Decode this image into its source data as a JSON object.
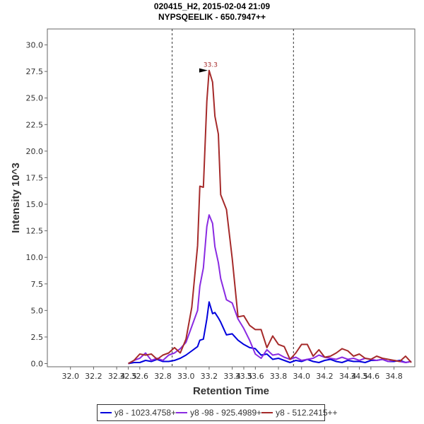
{
  "chart_data": {
    "type": "line",
    "title": "020415_H2, 2015-02-04 21:09",
    "subtitle": "NYPSQEELIK - 650.7947++",
    "xlabel": "Retention Time",
    "ylabel": "Intensity 10^3",
    "xlim": [
      31.8,
      34.98
    ],
    "ylim": [
      -0.3,
      31.5
    ],
    "xticks": [
      "32.0",
      "32.2",
      "32.4",
      "32.5",
      "32.6",
      "32.8",
      "33.0",
      "33.2",
      "33.4",
      "33.5",
      "33.6",
      "33.8",
      "34.0",
      "34.2",
      "34.4",
      "34.5",
      "34.6",
      "34.8"
    ],
    "xtick_values": [
      32.0,
      32.2,
      32.4,
      32.5,
      32.6,
      32.8,
      33.0,
      33.2,
      33.4,
      33.5,
      33.6,
      33.8,
      34.0,
      34.2,
      34.4,
      34.5,
      34.6,
      34.8
    ],
    "yticks": [
      "0.0",
      "2.5",
      "5.0",
      "7.5",
      "10.0",
      "12.5",
      "15.0",
      "17.5",
      "20.0",
      "22.5",
      "25.0",
      "27.5",
      "30.0"
    ],
    "ytick_values": [
      0,
      2.5,
      5,
      7.5,
      10,
      12.5,
      15,
      17.5,
      20,
      22.5,
      25,
      27.5,
      30
    ],
    "vlines": [
      32.88,
      33.93
    ],
    "peak_label": "33.3",
    "peak": {
      "x": 33.2,
      "y": 27.6
    },
    "grid": false,
    "legend_position": "bottom",
    "series": [
      {
        "name": "y8 - 1023.4758+",
        "color": "#0000dd",
        "x": [
          32.5,
          32.55,
          32.6,
          32.65,
          32.7,
          32.75,
          32.8,
          32.85,
          32.9,
          32.95,
          33.0,
          33.05,
          33.1,
          33.12,
          33.15,
          33.18,
          33.2,
          33.23,
          33.25,
          33.28,
          33.3,
          33.35,
          33.4,
          33.45,
          33.5,
          33.55,
          33.6,
          33.65,
          33.7,
          33.75,
          33.8,
          33.85,
          33.9,
          33.95,
          34.0,
          34.05,
          34.1,
          34.15,
          34.2,
          34.25,
          34.3,
          34.35,
          34.4,
          34.45,
          34.5,
          34.55,
          34.6,
          34.65,
          34.7,
          34.75,
          34.8,
          34.85,
          34.9,
          34.95
        ],
        "y": [
          0.0,
          0.1,
          0.1,
          0.3,
          0.2,
          0.4,
          0.2,
          0.2,
          0.3,
          0.5,
          0.8,
          1.2,
          1.6,
          2.2,
          2.3,
          4.2,
          5.8,
          4.7,
          4.8,
          4.3,
          3.9,
          2.7,
          2.8,
          2.2,
          1.8,
          1.5,
          1.4,
          0.8,
          0.9,
          0.4,
          0.5,
          0.3,
          0.1,
          0.3,
          0.2,
          0.4,
          0.2,
          0.1,
          0.3,
          0.4,
          0.2,
          0.1,
          0.3,
          0.2,
          0.2,
          0.1,
          0.3,
          0.3,
          0.4,
          0.2,
          0.2,
          0.3,
          0.1,
          0.2
        ]
      },
      {
        "name": "y8 -98 - 925.4989+",
        "color": "#8a2be2",
        "x": [
          32.5,
          32.55,
          32.6,
          32.65,
          32.7,
          32.75,
          32.8,
          32.85,
          32.9,
          32.95,
          33.0,
          33.05,
          33.1,
          33.12,
          33.15,
          33.18,
          33.2,
          33.23,
          33.25,
          33.28,
          33.3,
          33.35,
          33.4,
          33.45,
          33.5,
          33.55,
          33.6,
          33.65,
          33.7,
          33.75,
          33.8,
          33.85,
          33.9,
          33.95,
          34.0,
          34.05,
          34.1,
          34.15,
          34.2,
          34.25,
          34.3,
          34.35,
          34.4,
          34.45,
          34.5,
          34.55,
          34.6,
          34.65,
          34.7,
          34.75,
          34.8,
          34.85,
          34.9,
          34.95
        ],
        "y": [
          0.0,
          0.3,
          0.5,
          1.0,
          0.3,
          0.5,
          0.3,
          0.8,
          1.0,
          1.4,
          2.0,
          3.5,
          5.0,
          7.3,
          9.0,
          12.9,
          14.0,
          13.2,
          11.0,
          9.5,
          8.0,
          6.0,
          5.7,
          4.2,
          3.3,
          2.2,
          0.9,
          0.5,
          1.3,
          0.8,
          0.9,
          0.6,
          0.4,
          0.6,
          0.3,
          0.4,
          0.5,
          0.8,
          0.6,
          0.5,
          0.4,
          0.6,
          0.4,
          0.5,
          0.3,
          0.5,
          0.4,
          0.3,
          0.4,
          0.2,
          0.3,
          0.2,
          0.1,
          0.2
        ]
      },
      {
        "name": "y8 - 512.2415++",
        "color": "#a52a2a",
        "x": [
          32.5,
          32.55,
          32.6,
          32.65,
          32.7,
          32.75,
          32.8,
          32.85,
          32.9,
          32.95,
          33.0,
          33.05,
          33.1,
          33.12,
          33.15,
          33.18,
          33.2,
          33.23,
          33.25,
          33.28,
          33.3,
          33.35,
          33.4,
          33.45,
          33.5,
          33.55,
          33.6,
          33.65,
          33.7,
          33.75,
          33.8,
          33.85,
          33.9,
          33.95,
          34.0,
          34.05,
          34.1,
          34.15,
          34.2,
          34.25,
          34.3,
          34.35,
          34.4,
          34.45,
          34.5,
          34.55,
          34.6,
          34.65,
          34.7,
          34.75,
          34.8,
          34.85,
          34.9,
          34.95
        ],
        "y": [
          0.0,
          0.3,
          0.9,
          0.8,
          0.9,
          0.4,
          0.8,
          1.0,
          1.5,
          1.0,
          2.3,
          5.3,
          11.1,
          16.7,
          16.6,
          24.7,
          27.6,
          26.5,
          23.3,
          21.6,
          15.9,
          14.5,
          9.9,
          4.4,
          4.5,
          3.6,
          3.2,
          3.2,
          1.5,
          2.6,
          1.8,
          1.6,
          0.4,
          1.0,
          1.8,
          1.8,
          0.7,
          1.3,
          0.6,
          0.7,
          1.0,
          1.4,
          1.2,
          0.7,
          0.9,
          0.5,
          0.4,
          0.7,
          0.5,
          0.4,
          0.3,
          0.2,
          0.7,
          0.1
        ]
      }
    ]
  }
}
